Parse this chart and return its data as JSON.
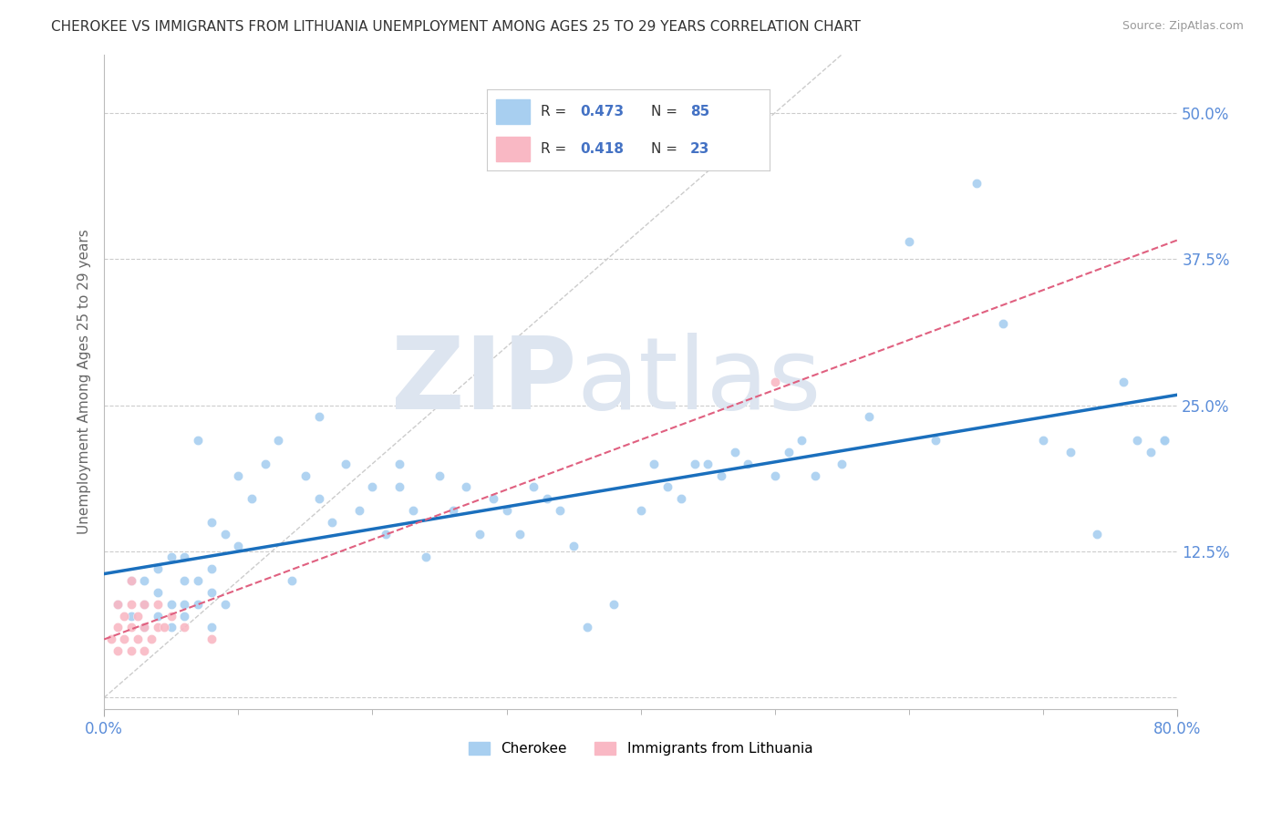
{
  "title": "CHEROKEE VS IMMIGRANTS FROM LITHUANIA UNEMPLOYMENT AMONG AGES 25 TO 29 YEARS CORRELATION CHART",
  "source": "Source: ZipAtlas.com",
  "ylabel": "Unemployment Among Ages 25 to 29 years",
  "xlim": [
    0.0,
    0.8
  ],
  "ylim": [
    -0.01,
    0.55
  ],
  "yticks": [
    0.0,
    0.125,
    0.25,
    0.375,
    0.5
  ],
  "cherokee_R": 0.473,
  "cherokee_N": 85,
  "lithuania_R": 0.418,
  "lithuania_N": 23,
  "cherokee_color": "#a8cff0",
  "cherokee_line_color": "#1a6fbd",
  "lithuania_color": "#f9b8c4",
  "lithuania_line_color": "#e06080",
  "watermark_color": "#dde5f0",
  "background_color": "#ffffff",
  "grid_color": "#cccccc",
  "cherokee_x": [
    0.01,
    0.02,
    0.02,
    0.03,
    0.03,
    0.03,
    0.04,
    0.04,
    0.04,
    0.05,
    0.05,
    0.05,
    0.06,
    0.06,
    0.06,
    0.06,
    0.07,
    0.07,
    0.07,
    0.08,
    0.08,
    0.08,
    0.08,
    0.09,
    0.09,
    0.1,
    0.1,
    0.11,
    0.12,
    0.13,
    0.14,
    0.15,
    0.16,
    0.16,
    0.17,
    0.18,
    0.19,
    0.2,
    0.21,
    0.22,
    0.22,
    0.23,
    0.24,
    0.25,
    0.26,
    0.27,
    0.28,
    0.29,
    0.3,
    0.31,
    0.32,
    0.33,
    0.34,
    0.35,
    0.36,
    0.38,
    0.4,
    0.41,
    0.42,
    0.43,
    0.44,
    0.45,
    0.46,
    0.47,
    0.48,
    0.5,
    0.51,
    0.52,
    0.53,
    0.55,
    0.57,
    0.6,
    0.62,
    0.65,
    0.67,
    0.7,
    0.72,
    0.74,
    0.76,
    0.77,
    0.78,
    0.79,
    0.79,
    0.79,
    0.79
  ],
  "cherokee_y": [
    0.08,
    0.07,
    0.1,
    0.06,
    0.08,
    0.1,
    0.07,
    0.09,
    0.11,
    0.06,
    0.08,
    0.12,
    0.07,
    0.08,
    0.1,
    0.12,
    0.08,
    0.1,
    0.22,
    0.06,
    0.09,
    0.11,
    0.15,
    0.08,
    0.14,
    0.13,
    0.19,
    0.17,
    0.2,
    0.22,
    0.1,
    0.19,
    0.17,
    0.24,
    0.15,
    0.2,
    0.16,
    0.18,
    0.14,
    0.18,
    0.2,
    0.16,
    0.12,
    0.19,
    0.16,
    0.18,
    0.14,
    0.17,
    0.16,
    0.14,
    0.18,
    0.17,
    0.16,
    0.13,
    0.06,
    0.08,
    0.16,
    0.2,
    0.18,
    0.17,
    0.2,
    0.2,
    0.19,
    0.21,
    0.2,
    0.19,
    0.21,
    0.22,
    0.19,
    0.2,
    0.24,
    0.39,
    0.22,
    0.44,
    0.32,
    0.22,
    0.21,
    0.14,
    0.27,
    0.22,
    0.21,
    0.22,
    0.22,
    0.22,
    0.22
  ],
  "lithuania_x": [
    0.005,
    0.01,
    0.01,
    0.01,
    0.015,
    0.015,
    0.02,
    0.02,
    0.02,
    0.02,
    0.025,
    0.025,
    0.03,
    0.03,
    0.03,
    0.035,
    0.04,
    0.04,
    0.045,
    0.05,
    0.06,
    0.08,
    0.5
  ],
  "lithuania_y": [
    0.05,
    0.04,
    0.06,
    0.08,
    0.05,
    0.07,
    0.04,
    0.06,
    0.08,
    0.1,
    0.05,
    0.07,
    0.04,
    0.06,
    0.08,
    0.05,
    0.06,
    0.08,
    0.06,
    0.07,
    0.06,
    0.05,
    0.27
  ]
}
